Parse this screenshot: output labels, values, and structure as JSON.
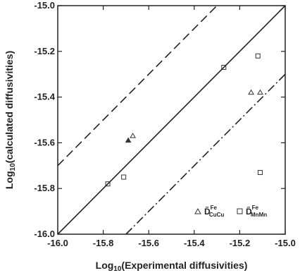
{
  "chart_data": {
    "type": "scatter",
    "xlabel": {
      "prefix": "Log",
      "sub": "10",
      "rest": "(Experimental diffusivities)"
    },
    "ylabel": {
      "prefix": "Log",
      "sub": "10",
      "rest": "(calculated diffusivities)"
    },
    "xlim": [
      -16.0,
      -15.0
    ],
    "ylim": [
      -16.0,
      -15.0
    ],
    "x_ticks": [
      -16.0,
      -15.8,
      -15.6,
      -15.4,
      -15.2,
      -15.0
    ],
    "y_ticks": [
      -16.0,
      -15.8,
      -15.6,
      -15.4,
      -15.2,
      -15.0
    ],
    "x_tick_labels": [
      "-16.0",
      "-15.8",
      "-15.6",
      "-15.4",
      "-15.2",
      "-15.0"
    ],
    "y_tick_labels": [
      "-16.0",
      "-15.8",
      "-15.6",
      "-15.4",
      "-15.2",
      "-15.0"
    ],
    "grid": false,
    "legend_position": "bottom-right",
    "reference_lines": [
      {
        "style": "solid",
        "intercept": 0.0
      },
      {
        "style": "dashed",
        "intercept": 0.3
      },
      {
        "style": "dash-dot",
        "intercept": -0.3
      }
    ],
    "series": [
      {
        "name": "D̃CuCuFe",
        "legend_main": "D̃",
        "legend_sup": "Fe",
        "legend_sub": "CuCu",
        "marker": "triangle",
        "points": [
          {
            "x": -15.69,
            "y": -15.59,
            "filled": true
          },
          {
            "x": -15.67,
            "y": -15.57
          },
          {
            "x": -15.15,
            "y": -15.38
          },
          {
            "x": -15.11,
            "y": -15.38
          }
        ]
      },
      {
        "name": "D̃MnMnFe",
        "legend_main": "D̃",
        "legend_sup": "Fe",
        "legend_sub": "MnMn",
        "marker": "square",
        "points": [
          {
            "x": -15.78,
            "y": -15.78
          },
          {
            "x": -15.71,
            "y": -15.75
          },
          {
            "x": -15.27,
            "y": -15.27
          },
          {
            "x": -15.12,
            "y": -15.22
          },
          {
            "x": -15.11,
            "y": -15.73
          }
        ]
      }
    ]
  },
  "colors": {
    "axis": "#222222",
    "line": "#222222",
    "marker": "#333333",
    "background": "#ffffff"
  }
}
